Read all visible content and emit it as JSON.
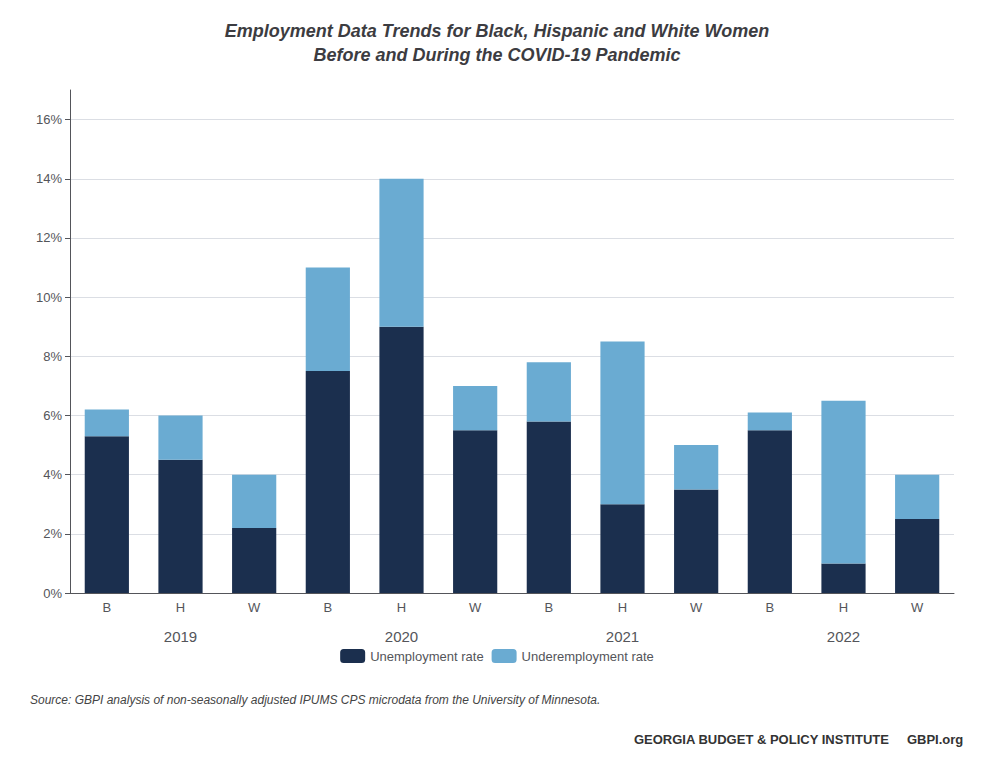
{
  "chart_data": {
    "type": "bar",
    "title": "Employment Data Trends for Black, Hispanic and White Women\nBefore and During the COVID-19 Pandemic",
    "categories": [
      "B",
      "H",
      "W",
      "B",
      "H",
      "W",
      "B",
      "H",
      "W",
      "B",
      "H",
      "W"
    ],
    "category_groups": [
      "2019",
      "2019",
      "2019",
      "2020",
      "2020",
      "2020",
      "2021",
      "2021",
      "2021",
      "2022",
      "2022",
      "2022"
    ],
    "series": [
      {
        "name": "Unemployment rate",
        "color": "#1b2f4e",
        "values": [
          5.3,
          4.5,
          2.2,
          7.5,
          9.0,
          5.5,
          5.8,
          3.0,
          3.5,
          5.5,
          1.0,
          2.5
        ]
      },
      {
        "name": "Underemployment rate",
        "color": "#6aabd2",
        "values": [
          0.9,
          1.5,
          1.8,
          3.5,
          5.0,
          1.5,
          2.0,
          5.5,
          1.5,
          0.6,
          5.5,
          1.5
        ]
      }
    ],
    "stacked": true,
    "ylim": [
      0,
      17
    ],
    "yticks": [
      {
        "value": 0,
        "label": "0%"
      },
      {
        "value": 2,
        "label": "2%"
      },
      {
        "value": 4,
        "label": "4%"
      },
      {
        "value": 6,
        "label": "6%"
      },
      {
        "value": 8,
        "label": "8%"
      },
      {
        "value": 10,
        "label": "10%"
      },
      {
        "value": 12,
        "label": "12%"
      },
      {
        "value": 14,
        "label": "14%"
      },
      {
        "value": 16,
        "label": "16%"
      }
    ],
    "grid": true,
    "legend": "bottom",
    "source": "Source: GBPI analysis of non-seasonally adjusted IPUMS CPS microdata from the University of Minnesota.",
    "footer": [
      "GEORGIA BUDGET & POLICY INSTITUTE",
      "GBPI.org"
    ]
  }
}
